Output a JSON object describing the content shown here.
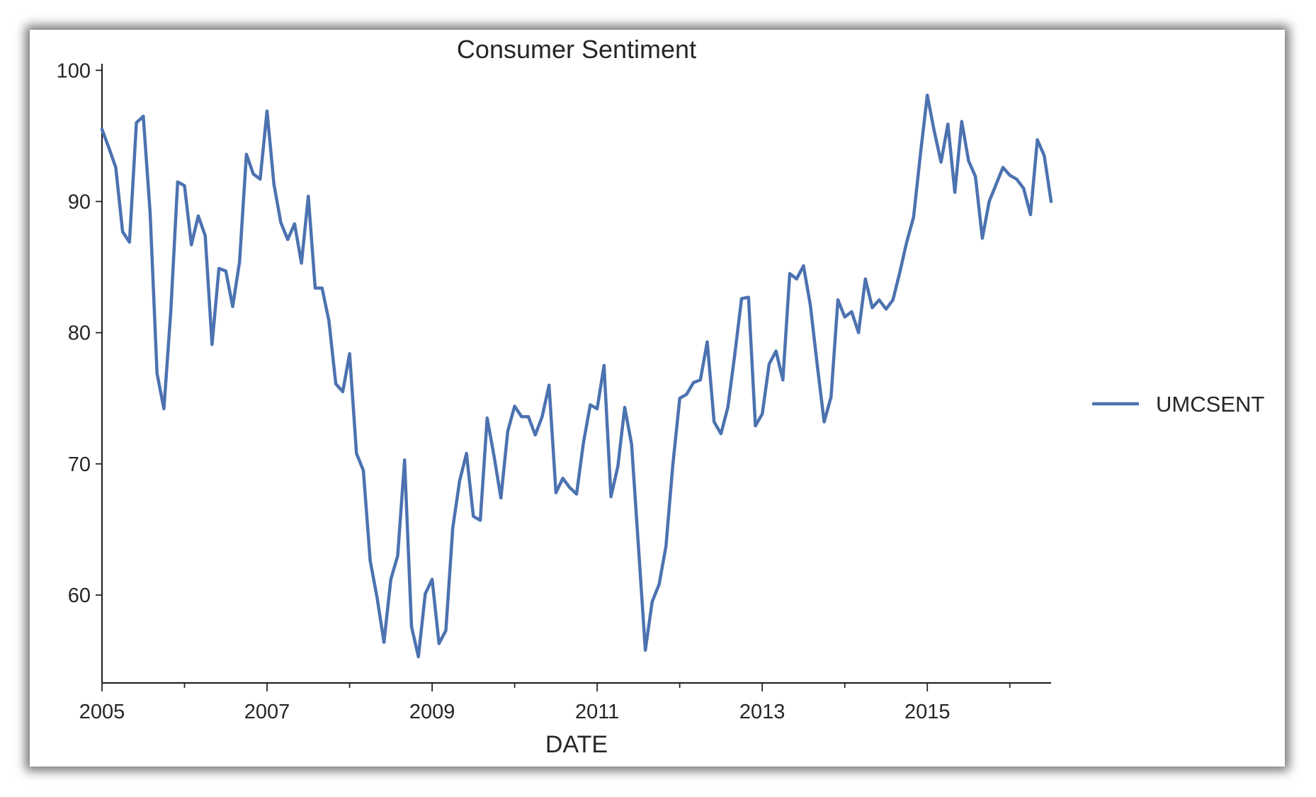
{
  "chart_data": {
    "type": "line",
    "title": "Consumer Sentiment",
    "xlabel": "DATE",
    "ylabel": "",
    "xlim": [
      2005.0,
      2016.5
    ],
    "ylim": [
      53.3,
      100.5
    ],
    "grid": false,
    "legend_position": "right",
    "x_tick_labels": [
      "2005",
      "2007",
      "2009",
      "2011",
      "2013",
      "2015"
    ],
    "y_tick_labels": [
      "60",
      "70",
      "80",
      "90",
      "100"
    ],
    "series": [
      {
        "name": "UMCSENT",
        "color": "#4c72b0",
        "start": "2005-01",
        "frequency": "monthly",
        "values": [
          95.5,
          94.1,
          92.6,
          87.7,
          86.9,
          96.0,
          96.5,
          89.1,
          76.9,
          74.2,
          81.6,
          91.5,
          91.2,
          86.7,
          88.9,
          87.4,
          79.1,
          84.9,
          84.7,
          82.0,
          85.4,
          93.6,
          92.1,
          91.7,
          96.9,
          91.3,
          88.4,
          87.1,
          88.3,
          85.3,
          90.4,
          83.4,
          83.4,
          80.9,
          76.1,
          75.5,
          78.4,
          70.8,
          69.5,
          62.6,
          59.8,
          56.4,
          61.2,
          63.0,
          70.3,
          57.6,
          55.3,
          60.1,
          61.2,
          56.3,
          57.3,
          65.1,
          68.7,
          70.8,
          66.0,
          65.7,
          73.5,
          70.6,
          67.4,
          72.5,
          74.4,
          73.6,
          73.6,
          72.2,
          73.6,
          76.0,
          67.8,
          68.9,
          68.2,
          67.7,
          71.6,
          74.5,
          74.2,
          77.5,
          67.5,
          69.8,
          74.3,
          71.5,
          63.7,
          55.8,
          59.5,
          60.8,
          63.7,
          69.9,
          75.0,
          75.3,
          76.2,
          76.4,
          79.3,
          73.2,
          72.3,
          74.3,
          78.3,
          82.6,
          82.7,
          72.9,
          73.8,
          77.6,
          78.6,
          76.4,
          84.5,
          84.1,
          85.1,
          82.1,
          77.5,
          73.2,
          75.1,
          82.5,
          81.2,
          81.6,
          80.0,
          84.1,
          81.9,
          82.5,
          81.8,
          82.5,
          84.6,
          86.9,
          88.8,
          93.6,
          98.1,
          95.4,
          93.0,
          95.9,
          90.7,
          96.1,
          93.1,
          91.9,
          87.2,
          90.0,
          91.3,
          92.6,
          92.0,
          91.7,
          91.0,
          89.0,
          94.7,
          93.5,
          90.0
        ]
      }
    ]
  }
}
